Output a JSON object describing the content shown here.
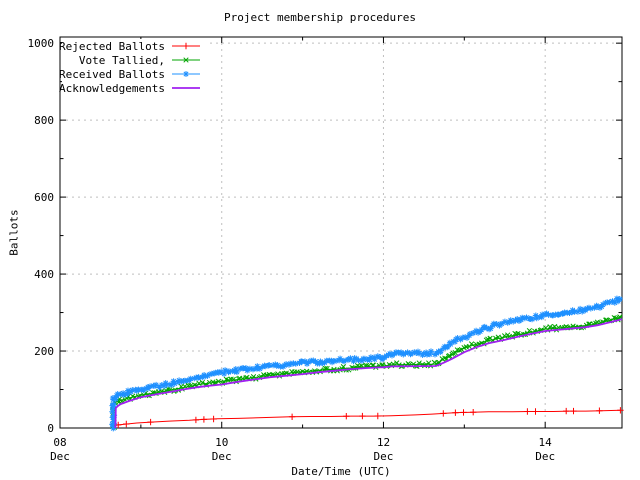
{
  "colors": {
    "background": "#ffffff",
    "border": "#000000",
    "grid": "#bfbfbf",
    "text": "#000000"
  },
  "chart_data": {
    "type": "line",
    "title": "Project membership procedures",
    "xlabel": "Date/Time (UTC)",
    "ylabel": "Ballots",
    "x_axis": {
      "range_days": [
        0,
        6.95
      ],
      "origin": "08 Dec 00:00 UTC",
      "major_ticks": [
        {
          "day": 0,
          "line1": "08",
          "line2": "Dec"
        },
        {
          "day": 2,
          "line1": "10",
          "line2": "Dec"
        },
        {
          "day": 4,
          "line1": "12",
          "line2": "Dec"
        },
        {
          "day": 6,
          "line1": "14",
          "line2": "Dec"
        }
      ],
      "minor_tick_days": [
        1,
        3,
        5
      ]
    },
    "y_axis": {
      "range": [
        0,
        1016
      ],
      "major_ticks": [
        {
          "value": 0,
          "label": "0"
        },
        {
          "value": 200,
          "label": "200"
        },
        {
          "value": 400,
          "label": "400"
        },
        {
          "value": 600,
          "label": "600"
        },
        {
          "value": 800,
          "label": "800"
        },
        {
          "value": 1000,
          "label": "1000"
        }
      ],
      "minor_tick_values": [
        100,
        300,
        500,
        700,
        900
      ]
    },
    "grid": {
      "show": true,
      "style": "dashed",
      "at": "major-ticks"
    },
    "legend": {
      "position": "top-left"
    },
    "series": [
      {
        "name": "Rejected Ballots",
        "color": "#ff0000",
        "marker": "plus",
        "marker_size": 3.2,
        "line_width": 1,
        "dense_markers": false,
        "marker_days": [
          0.72,
          0.82,
          1.12,
          1.68,
          1.78,
          1.9,
          2.87,
          3.54,
          3.74,
          3.93,
          4.74,
          4.89,
          4.99,
          5.11,
          5.78,
          5.88,
          6.26,
          6.35,
          6.67,
          6.93
        ],
        "points": [
          [
            0.655,
            0
          ],
          [
            0.66,
            6
          ],
          [
            0.72,
            8
          ],
          [
            0.8,
            10
          ],
          [
            0.95,
            13
          ],
          [
            1.1,
            15
          ],
          [
            1.35,
            18
          ],
          [
            1.6,
            20
          ],
          [
            1.75,
            22
          ],
          [
            1.95,
            24
          ],
          [
            2.2,
            25
          ],
          [
            2.5,
            27
          ],
          [
            2.85,
            29
          ],
          [
            3.1,
            30
          ],
          [
            3.35,
            30
          ],
          [
            3.6,
            31
          ],
          [
            3.9,
            31
          ],
          [
            4.1,
            32
          ],
          [
            4.4,
            34
          ],
          [
            4.6,
            36
          ],
          [
            4.75,
            38
          ],
          [
            4.9,
            40
          ],
          [
            5.1,
            41
          ],
          [
            5.3,
            42
          ],
          [
            5.6,
            42
          ],
          [
            5.8,
            43
          ],
          [
            6.1,
            43
          ],
          [
            6.3,
            44
          ],
          [
            6.5,
            44
          ],
          [
            6.7,
            45
          ],
          [
            6.93,
            46
          ]
        ]
      },
      {
        "name": "Vote Tallied,",
        "color": "#00a400",
        "marker": "cross",
        "marker_size": 2.7,
        "line_width": 1,
        "dense_markers": true,
        "points": [
          [
            0.66,
            0
          ],
          [
            0.665,
            62
          ],
          [
            0.7,
            68
          ],
          [
            0.75,
            72
          ],
          [
            0.85,
            78
          ],
          [
            1.0,
            85
          ],
          [
            1.2,
            92
          ],
          [
            1.4,
            100
          ],
          [
            1.55,
            106
          ],
          [
            1.7,
            112
          ],
          [
            1.85,
            117
          ],
          [
            2.0,
            121
          ],
          [
            2.2,
            126
          ],
          [
            2.4,
            131
          ],
          [
            2.6,
            137
          ],
          [
            2.8,
            142
          ],
          [
            3.0,
            146
          ],
          [
            3.2,
            150
          ],
          [
            3.4,
            153
          ],
          [
            3.6,
            156
          ],
          [
            3.8,
            159
          ],
          [
            4.0,
            161
          ],
          [
            4.1,
            164
          ],
          [
            4.65,
            166
          ],
          [
            4.72,
            176
          ],
          [
            4.8,
            186
          ],
          [
            4.9,
            197
          ],
          [
            5.0,
            208
          ],
          [
            5.15,
            218
          ],
          [
            5.3,
            227
          ],
          [
            5.5,
            236
          ],
          [
            5.7,
            244
          ],
          [
            5.9,
            252
          ],
          [
            6.0,
            257
          ],
          [
            6.2,
            261
          ],
          [
            6.35,
            263
          ],
          [
            6.5,
            266
          ],
          [
            6.65,
            271
          ],
          [
            6.8,
            280
          ],
          [
            6.9,
            286
          ],
          [
            6.95,
            290
          ]
        ]
      },
      {
        "name": "Received Ballots",
        "color": "#1e90ff",
        "marker": "star",
        "marker_size": 3,
        "line_width": 1,
        "dense_markers": true,
        "points": [
          [
            0.655,
            0
          ],
          [
            0.66,
            75
          ],
          [
            0.7,
            82
          ],
          [
            0.75,
            88
          ],
          [
            0.85,
            93
          ],
          [
            1.0,
            100
          ],
          [
            1.15,
            107
          ],
          [
            1.3,
            113
          ],
          [
            1.5,
            122
          ],
          [
            1.7,
            132
          ],
          [
            1.85,
            139
          ],
          [
            2.0,
            145
          ],
          [
            2.2,
            150
          ],
          [
            2.4,
            156
          ],
          [
            2.6,
            160
          ],
          [
            2.8,
            165
          ],
          [
            3.0,
            169
          ],
          [
            3.2,
            172
          ],
          [
            3.4,
            175
          ],
          [
            3.6,
            177
          ],
          [
            3.8,
            180
          ],
          [
            4.0,
            183
          ],
          [
            4.05,
            190
          ],
          [
            4.1,
            193
          ],
          [
            4.65,
            195
          ],
          [
            4.72,
            205
          ],
          [
            4.8,
            216
          ],
          [
            4.9,
            227
          ],
          [
            5.0,
            236
          ],
          [
            5.1,
            245
          ],
          [
            5.25,
            258
          ],
          [
            5.4,
            268
          ],
          [
            5.5,
            275
          ],
          [
            5.65,
            281
          ],
          [
            5.8,
            286
          ],
          [
            6.0,
            292
          ],
          [
            6.1,
            296
          ],
          [
            6.2,
            300
          ],
          [
            6.35,
            303
          ],
          [
            6.5,
            306
          ],
          [
            6.65,
            315
          ],
          [
            6.8,
            327
          ],
          [
            6.9,
            333
          ],
          [
            6.95,
            337
          ]
        ]
      },
      {
        "name": "Acknowledgements",
        "color": "#a020f0",
        "marker": "none",
        "marker_size": 0,
        "line_width": 1.8,
        "dense_markers": false,
        "points": [
          [
            0.685,
            0
          ],
          [
            0.69,
            52
          ],
          [
            0.72,
            58
          ],
          [
            0.75,
            62
          ],
          [
            0.85,
            70
          ],
          [
            1.0,
            80
          ],
          [
            1.2,
            88
          ],
          [
            1.4,
            95
          ],
          [
            1.55,
            101
          ],
          [
            1.7,
            106
          ],
          [
            1.85,
            110
          ],
          [
            2.0,
            113
          ],
          [
            2.2,
            120
          ],
          [
            2.4,
            126
          ],
          [
            2.6,
            132
          ],
          [
            2.8,
            136
          ],
          [
            3.0,
            140
          ],
          [
            3.2,
            145
          ],
          [
            3.4,
            149
          ],
          [
            3.6,
            153
          ],
          [
            3.8,
            156
          ],
          [
            4.0,
            158
          ],
          [
            4.1,
            160
          ],
          [
            4.65,
            161
          ],
          [
            4.75,
            170
          ],
          [
            4.85,
            180
          ],
          [
            5.0,
            197
          ],
          [
            5.15,
            210
          ],
          [
            5.3,
            220
          ],
          [
            5.5,
            229
          ],
          [
            5.7,
            239
          ],
          [
            5.9,
            248
          ],
          [
            6.0,
            252
          ],
          [
            6.2,
            256
          ],
          [
            6.35,
            259
          ],
          [
            6.5,
            262
          ],
          [
            6.65,
            267
          ],
          [
            6.8,
            275
          ],
          [
            6.9,
            280
          ],
          [
            6.95,
            283
          ]
        ]
      }
    ]
  }
}
